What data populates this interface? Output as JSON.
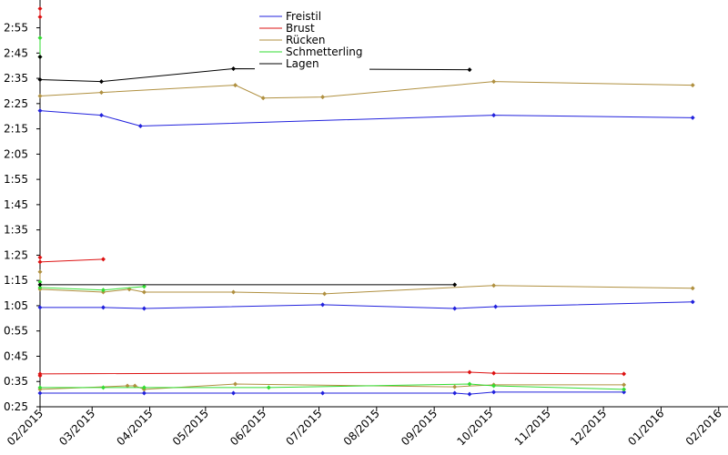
{
  "chart_data": {
    "type": "line",
    "xlim": [
      0,
      370
    ],
    "xticks": [
      {
        "value": 0,
        "label": "02/2015"
      },
      {
        "value": 28,
        "label": "03/2015"
      },
      {
        "value": 59,
        "label": "04/2015"
      },
      {
        "value": 89,
        "label": "05/2015"
      },
      {
        "value": 120,
        "label": "06/2015"
      },
      {
        "value": 150,
        "label": "07/2015"
      },
      {
        "value": 181,
        "label": "08/2015"
      },
      {
        "value": 212,
        "label": "09/2015"
      },
      {
        "value": 242,
        "label": "10/2015"
      },
      {
        "value": 273,
        "label": "11/2015"
      },
      {
        "value": 303,
        "label": "12/2015"
      },
      {
        "value": 334,
        "label": "01/2016"
      },
      {
        "value": 365,
        "label": "02/2016"
      }
    ],
    "ylim": [
      25,
      186
    ],
    "yticks": [
      {
        "value": 25,
        "label": "0:25"
      },
      {
        "value": 35,
        "label": "0:35"
      },
      {
        "value": 45,
        "label": "0:45"
      },
      {
        "value": 55,
        "label": "0:55"
      },
      {
        "value": 65,
        "label": "1:05"
      },
      {
        "value": 75,
        "label": "1:15"
      },
      {
        "value": 85,
        "label": "1:25"
      },
      {
        "value": 95,
        "label": "1:35"
      },
      {
        "value": 105,
        "label": "1:45"
      },
      {
        "value": 115,
        "label": "1:55"
      },
      {
        "value": 125,
        "label": "2:05"
      },
      {
        "value": 135,
        "label": "2:15"
      },
      {
        "value": 145,
        "label": "2:25"
      },
      {
        "value": 155,
        "label": "2:35"
      },
      {
        "value": 165,
        "label": "2:45"
      },
      {
        "value": 175,
        "label": "2:55"
      }
    ],
    "series": [
      {
        "name": "Freistil",
        "color": "#2222dd",
        "lines": [
          {
            "x": [
              0,
              33,
              54,
              244,
              351
            ],
            "values": [
              142.2,
              140.4,
              136.1,
              140.4,
              139.4
            ]
          },
          {
            "x": [
              0,
              34,
              56,
              152,
              223,
              245,
              351
            ],
            "values": [
              64.3,
              64.3,
              63.9,
              65.4,
              63.9,
              64.6,
              66.5
            ]
          },
          {
            "x": [
              0,
              56,
              104,
              152,
              223,
              231,
              244,
              314
            ],
            "values": [
              30.4,
              30.4,
              30.4,
              30.4,
              30.4,
              30.0,
              30.8,
              30.8
            ]
          }
        ]
      },
      {
        "name": "Brust",
        "color": "#dd1111",
        "lines": [
          {
            "x": [
              0,
              0
            ],
            "values": [
              182.6,
              179.3
            ]
          },
          {
            "x": [
              0,
              0,
              34
            ],
            "values": [
              84.1,
              82.3,
              83.4
            ]
          },
          {
            "x": [
              0,
              0,
              231,
              244,
              314
            ],
            "values": [
              37.3,
              38.0,
              38.7,
              38.3,
              38.0
            ]
          }
        ]
      },
      {
        "name": "Rücken",
        "color": "#b09040",
        "lines": [
          {
            "x": [
              0,
              33,
              105,
              120,
              152,
              244,
              351
            ],
            "values": [
              148.0,
              149.4,
              152.3,
              147.2,
              147.6,
              153.7,
              152.3
            ]
          },
          {
            "x": [
              0,
              0,
              34,
              48,
              56,
              104,
              153,
              244,
              351
            ],
            "values": [
              78.4,
              71.5,
              70.4,
              71.5,
              70.4,
              70.4,
              69.7,
              73.0,
              71.9
            ]
          },
          {
            "x": [
              0,
              47,
              51,
              56,
              105,
              223,
              244,
              314
            ],
            "values": [
              31.9,
              33.3,
              33.3,
              31.9,
              34.0,
              32.9,
              33.7,
              33.7
            ]
          }
        ]
      },
      {
        "name": "Schmetterling",
        "color": "#33dd33",
        "lines": [
          {
            "x": [
              0,
              0
            ],
            "values": [
              171.0,
              163.5
            ]
          },
          {
            "x": [
              0,
              0,
              34,
              56
            ],
            "values": [
              74.4,
              72.2,
              71.2,
              72.6
            ]
          },
          {
            "x": [
              0,
              34,
              56,
              123,
              231,
              244,
              314
            ],
            "values": [
              32.6,
              32.6,
              32.6,
              32.6,
              34.0,
              33.3,
              31.9
            ]
          }
        ]
      },
      {
        "name": "Lagen",
        "color": "#000000",
        "lines": [
          {
            "x": [
              0,
              0,
              33,
              104,
              231
            ],
            "values": [
              163.5,
              154.5,
              153.7,
              158.8,
              158.4
            ]
          },
          {
            "x": [
              0,
              223
            ],
            "values": [
              73.3,
              73.3
            ]
          }
        ]
      }
    ]
  }
}
